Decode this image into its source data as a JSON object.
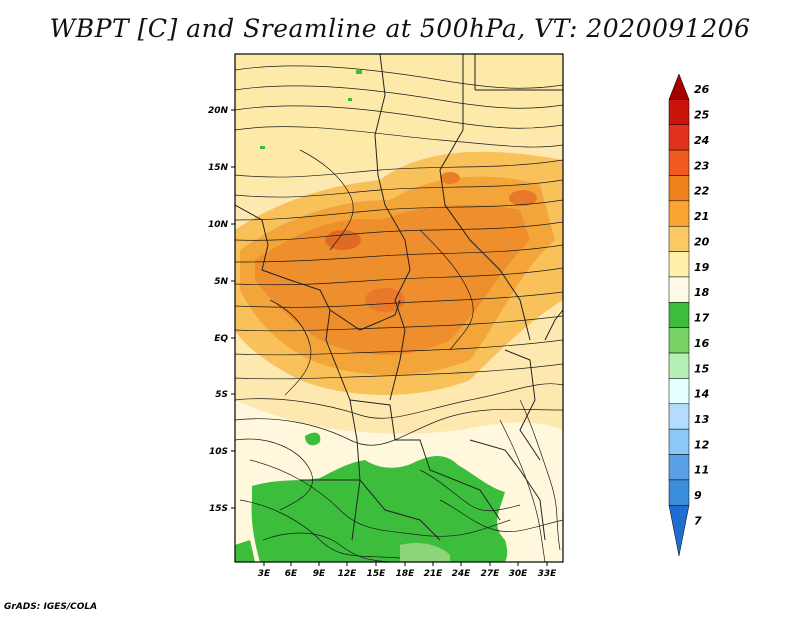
{
  "title": "WBPT [C] and Sreamline at 500hPa, VT: 2020091206",
  "footer": "GrADS: IGES/COLA",
  "map": {
    "lat_labels": [
      "20N",
      "15N",
      "10N",
      "5N",
      "EQ",
      "5S",
      "10S",
      "15S"
    ],
    "lon_labels": [
      "3E",
      "6E",
      "9E",
      "12E",
      "15E",
      "18E",
      "21E",
      "24E",
      "27E",
      "30E",
      "33E"
    ]
  },
  "colorbar": {
    "labels": [
      "26",
      "25",
      "24",
      "23",
      "22",
      "21",
      "20",
      "19",
      "18",
      "17",
      "16",
      "15",
      "14",
      "13",
      "12",
      "11",
      "9",
      "7"
    ],
    "colors": [
      "#a50000",
      "#c8140a",
      "#e1321e",
      "#f05a1e",
      "#f0821e",
      "#faa532",
      "#fac864",
      "#fff0aa",
      "#fffae6",
      "#3cbe3c",
      "#78d264",
      "#b4f0b4",
      "#e6ffff",
      "#b4dcff",
      "#8cc8f5",
      "#5aa0e6",
      "#3c8cdc",
      "#1e6ed2"
    ]
  }
}
